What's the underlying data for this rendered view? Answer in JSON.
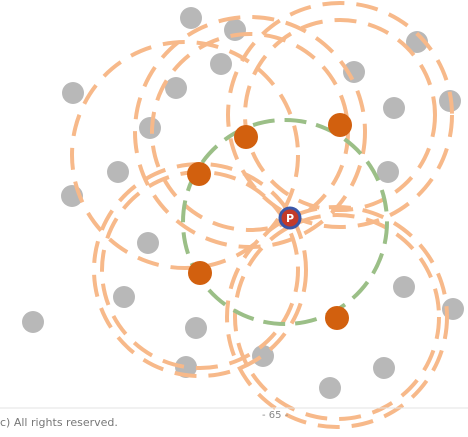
{
  "colors": {
    "gray_node": "#b8b8b8",
    "orange_node": "#d2600e",
    "orange_circle": "#f7b98a",
    "green_circle": "#9bbf87",
    "center_fill": "#c23a2a",
    "center_ring": "#3a57a8"
  },
  "center_label": "P",
  "footer": {
    "copyright": "c) All rights reserved.",
    "page_number": "- 65 -"
  }
}
